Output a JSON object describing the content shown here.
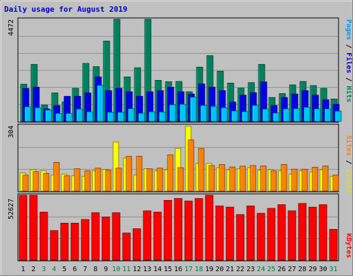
{
  "title": "Daily usage for August 2019",
  "colors": {
    "background": "#c0c0c0",
    "title": "#0000c8",
    "hits": "#00805c",
    "files": "#0000e6",
    "pages": "#00c0ff",
    "visits": "#ffff00",
    "sites": "#ff8000",
    "kbytes": "#ff0000",
    "weekday_label": "#000000",
    "weekend_label": "#008040"
  },
  "legend": {
    "top": [
      {
        "text": "Pages",
        "color": "#00a0e0"
      },
      {
        "text": " / ",
        "color": "#000000"
      },
      {
        "text": "Files",
        "color": "#0000c8"
      },
      {
        "text": " / ",
        "color": "#000000"
      },
      {
        "text": "Hits",
        "color": "#00805c"
      }
    ],
    "middle": [
      {
        "text": "Sites",
        "color": "#ff8000"
      },
      {
        "text": " / ",
        "color": "#000000"
      },
      {
        "text": "Visits",
        "color": "#e0e000"
      }
    ],
    "bottom": [
      {
        "text": "KBytes",
        "color": "#ff0000"
      }
    ]
  },
  "chart_data": [
    {
      "type": "bar",
      "name": "hits-files-pages",
      "x": [
        1,
        2,
        3,
        4,
        5,
        6,
        7,
        8,
        9,
        10,
        11,
        12,
        13,
        14,
        15,
        16,
        17,
        18,
        19,
        20,
        21,
        22,
        23,
        24,
        25,
        26,
        27,
        28,
        29,
        30,
        31
      ],
      "ymax_label": "4472",
      "ylim": [
        0,
        4472
      ],
      "series": [
        {
          "name": "Hits",
          "values": [
            1630,
            2500,
            720,
            1250,
            850,
            1450,
            2540,
            2400,
            3520,
            4472,
            1950,
            2350,
            4472,
            1800,
            1740,
            1750,
            1300,
            2380,
            2880,
            2200,
            1680,
            1460,
            1700,
            2500,
            1050,
            1220,
            1600,
            1750,
            1570,
            1450,
            980
          ]
        },
        {
          "name": "Files",
          "values": [
            1440,
            1500,
            550,
            700,
            1100,
            1100,
            1250,
            1950,
            1350,
            1450,
            1300,
            1100,
            1300,
            1350,
            1500,
            1300,
            1200,
            1640,
            1500,
            1350,
            850,
            1150,
            1260,
            1730,
            700,
            1050,
            1200,
            1350,
            1150,
            950,
            750
          ]
        },
        {
          "name": "Pages",
          "values": [
            640,
            600,
            500,
            350,
            350,
            540,
            420,
            1580,
            400,
            400,
            560,
            360,
            420,
            410,
            730,
            750,
            1060,
            700,
            660,
            600,
            460,
            430,
            700,
            540,
            370,
            550,
            560,
            620,
            550,
            550,
            450
          ]
        }
      ]
    },
    {
      "type": "bar",
      "name": "visits-sites",
      "x": [
        1,
        2,
        3,
        4,
        5,
        6,
        7,
        8,
        9,
        10,
        11,
        12,
        13,
        14,
        15,
        16,
        17,
        18,
        19,
        20,
        21,
        22,
        23,
        24,
        25,
        26,
        27,
        28,
        29,
        30,
        31
      ],
      "ymax_label": "304",
      "ylim": [
        0,
        304
      ],
      "series": [
        {
          "name": "Visits",
          "values": [
            85,
            100,
            95,
            75,
            80,
            72,
            70,
            95,
            102,
            230,
            155,
            75,
            105,
            95,
            100,
            200,
            304,
            130,
            130,
            110,
            100,
            105,
            110,
            98,
            100,
            95,
            80,
            95,
            90,
            100,
            70
          ]
        },
        {
          "name": "Sites",
          "values": [
            75,
            92,
            83,
            135,
            72,
            105,
            95,
            108,
            98,
            108,
            163,
            163,
            105,
            108,
            170,
            110,
            240,
            200,
            120,
            125,
            113,
            117,
            120,
            118,
            95,
            125,
            103,
            103,
            112,
            118,
            75
          ]
        }
      ]
    },
    {
      "type": "bar",
      "name": "kbytes",
      "x": [
        1,
        2,
        3,
        4,
        5,
        6,
        7,
        8,
        9,
        10,
        11,
        12,
        13,
        14,
        15,
        16,
        17,
        18,
        19,
        20,
        21,
        22,
        23,
        24,
        25,
        26,
        27,
        28,
        29,
        30,
        31
      ],
      "ymax_label": "52627",
      "ylim": [
        0,
        52627
      ],
      "series": [
        {
          "name": "KBytes",
          "values": [
            52627,
            52627,
            39000,
            24000,
            30000,
            30000,
            33000,
            38500,
            35000,
            38500,
            22000,
            25500,
            40000,
            39000,
            48500,
            50000,
            48000,
            50000,
            52627,
            44000,
            43000,
            37000,
            44000,
            38000,
            42000,
            45000,
            40000,
            46000,
            43000,
            45000,
            25000
          ]
        }
      ]
    }
  ],
  "days": [
    "1",
    "2",
    "3",
    "4",
    "5",
    "6",
    "7",
    "8",
    "9",
    "10",
    "11",
    "12",
    "13",
    "14",
    "15",
    "16",
    "17",
    "18",
    "19",
    "20",
    "21",
    "22",
    "23",
    "24",
    "25",
    "26",
    "27",
    "28",
    "29",
    "30",
    "31"
  ],
  "weekend_days": [
    3,
    4,
    10,
    11,
    17,
    18,
    24,
    25,
    31
  ]
}
